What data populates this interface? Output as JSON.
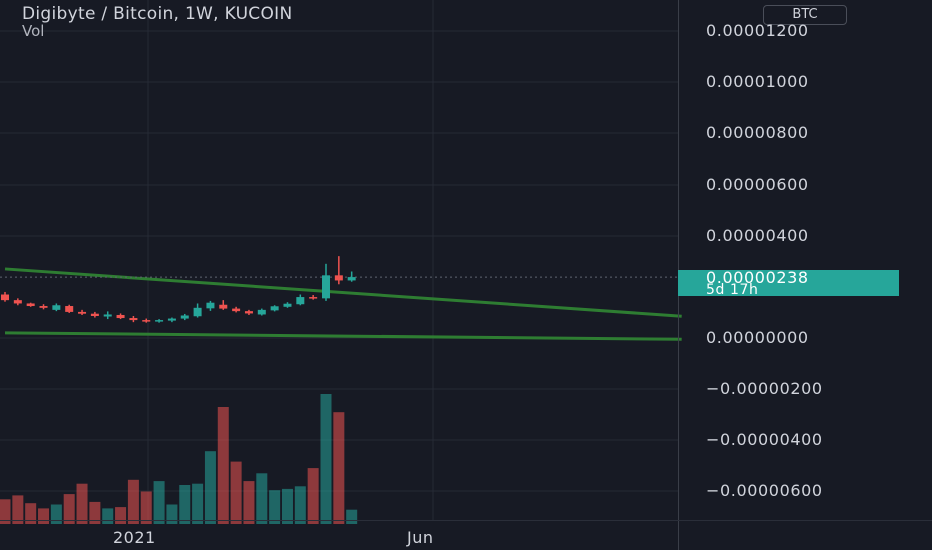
{
  "header": {
    "symbol_title": "Digibyte / Bitcoin, 1W, KUCOIN",
    "volume_label": "Vol",
    "currency_badge": "BTC"
  },
  "y_axis": {
    "labels": [
      "0.00001200",
      "0.00001000",
      "0.00000800",
      "0.00000600",
      "0.00000400",
      "0.00000000",
      "−0.00000200",
      "−0.00000400",
      "−0.00000600"
    ]
  },
  "x_axis": {
    "labels": [
      "2021",
      "Jun"
    ]
  },
  "price_tag": {
    "price": "0.00000238",
    "countdown": "5d 17h"
  },
  "colors": {
    "background": "#171a24",
    "up": "#26a69a",
    "down": "#ef5350",
    "trendline": "#2e7d32",
    "price_tag": "#26a69a"
  },
  "chart_data": {
    "type": "candlestick",
    "timeframe": "1W",
    "exchange": "KUCOIN",
    "last_price": 2.38e-06,
    "price_axis_range": [
      -7.5e-06,
      1.28e-05
    ],
    "candles": [
      {
        "o": 1.7e-06,
        "h": 1.8e-06,
        "l": 1.42e-06,
        "c": 1.48e-06
      },
      {
        "o": 1.48e-06,
        "h": 1.55e-06,
        "l": 1.28e-06,
        "c": 1.35e-06
      },
      {
        "o": 1.35e-06,
        "h": 1.38e-06,
        "l": 1.22e-06,
        "c": 1.25e-06
      },
      {
        "o": 1.25e-06,
        "h": 1.32e-06,
        "l": 1.12e-06,
        "c": 1.18e-06
      },
      {
        "o": 1.1e-06,
        "h": 1.35e-06,
        "l": 1.05e-06,
        "c": 1.28e-06
      },
      {
        "o": 1.25e-06,
        "h": 1.3e-06,
        "l": 9.8e-07,
        "c": 1.02e-06
      },
      {
        "o": 1.02e-06,
        "h": 1.1e-06,
        "l": 9e-07,
        "c": 9.5e-07
      },
      {
        "o": 9.5e-07,
        "h": 1.02e-06,
        "l": 8e-07,
        "c": 8.6e-07
      },
      {
        "o": 8.4e-07,
        "h": 1.04e-06,
        "l": 7.4e-07,
        "c": 9.2e-07
      },
      {
        "o": 9e-07,
        "h": 9.6e-07,
        "l": 7.4e-07,
        "c": 7.8e-07
      },
      {
        "o": 7.8e-07,
        "h": 8.6e-07,
        "l": 6.2e-07,
        "c": 7e-07
      },
      {
        "o": 7e-07,
        "h": 7.6e-07,
        "l": 6e-07,
        "c": 6.6e-07
      },
      {
        "o": 6.6e-07,
        "h": 7.4e-07,
        "l": 6e-07,
        "c": 7e-07
      },
      {
        "o": 6.8e-07,
        "h": 8e-07,
        "l": 6.2e-07,
        "c": 7.6e-07
      },
      {
        "o": 7.6e-07,
        "h": 9.4e-07,
        "l": 7e-07,
        "c": 8.8e-07
      },
      {
        "o": 8.5e-07,
        "h": 1.35e-06,
        "l": 8e-07,
        "c": 1.18e-06
      },
      {
        "o": 1.16e-06,
        "h": 1.45e-06,
        "l": 1.06e-06,
        "c": 1.38e-06
      },
      {
        "o": 1.3e-06,
        "h": 1.48e-06,
        "l": 1.1e-06,
        "c": 1.15e-06
      },
      {
        "o": 1.15e-06,
        "h": 1.22e-06,
        "l": 1e-06,
        "c": 1.05e-06
      },
      {
        "o": 1.05e-06,
        "h": 1.1e-06,
        "l": 9e-07,
        "c": 9.6e-07
      },
      {
        "o": 9.2e-07,
        "h": 1.15e-06,
        "l": 8.8e-07,
        "c": 1.1e-06
      },
      {
        "o": 1.08e-06,
        "h": 1.28e-06,
        "l": 1.04e-06,
        "c": 1.24e-06
      },
      {
        "o": 1.22e-06,
        "h": 1.4e-06,
        "l": 1.18e-06,
        "c": 1.34e-06
      },
      {
        "o": 1.32e-06,
        "h": 1.7e-06,
        "l": 1.28e-06,
        "c": 1.6e-06
      },
      {
        "o": 1.6e-06,
        "h": 1.68e-06,
        "l": 1.5e-06,
        "c": 1.55e-06
      },
      {
        "o": 1.55e-06,
        "h": 2.9e-06,
        "l": 1.45e-06,
        "c": 2.45e-06
      },
      {
        "o": 2.45e-06,
        "h": 3.2e-06,
        "l": 2.1e-06,
        "c": 2.25e-06
      },
      {
        "o": 2.25e-06,
        "h": 2.6e-06,
        "l": 2.2e-06,
        "c": 2.38e-06
      }
    ],
    "volume_relative": [
      0.19,
      0.22,
      0.16,
      0.12,
      0.15,
      0.23,
      0.31,
      0.17,
      0.12,
      0.13,
      0.34,
      0.25,
      0.33,
      0.15,
      0.3,
      0.31,
      0.56,
      0.9,
      0.48,
      0.33,
      0.39,
      0.26,
      0.27,
      0.29,
      0.43,
      1.0,
      0.86,
      0.11
    ],
    "trendlines": [
      {
        "from": {
          "bar": 0,
          "price": 2.7e-06
        },
        "to": {
          "bar": 52.7,
          "price": 8.5e-07
        }
      },
      {
        "from": {
          "bar": 0,
          "price": 2e-07
        },
        "to": {
          "bar": 52.7,
          "price": -5e-08
        }
      }
    ],
    "ylabels": [
      "0.00001200",
      "0.00001000",
      "0.00000800",
      "0.00000600",
      "0.00000400",
      "0.00000000",
      "-0.00000200",
      "-0.00000400",
      "-0.00000600"
    ],
    "xlabels": [
      "2021",
      "Jun"
    ],
    "grid": true
  }
}
